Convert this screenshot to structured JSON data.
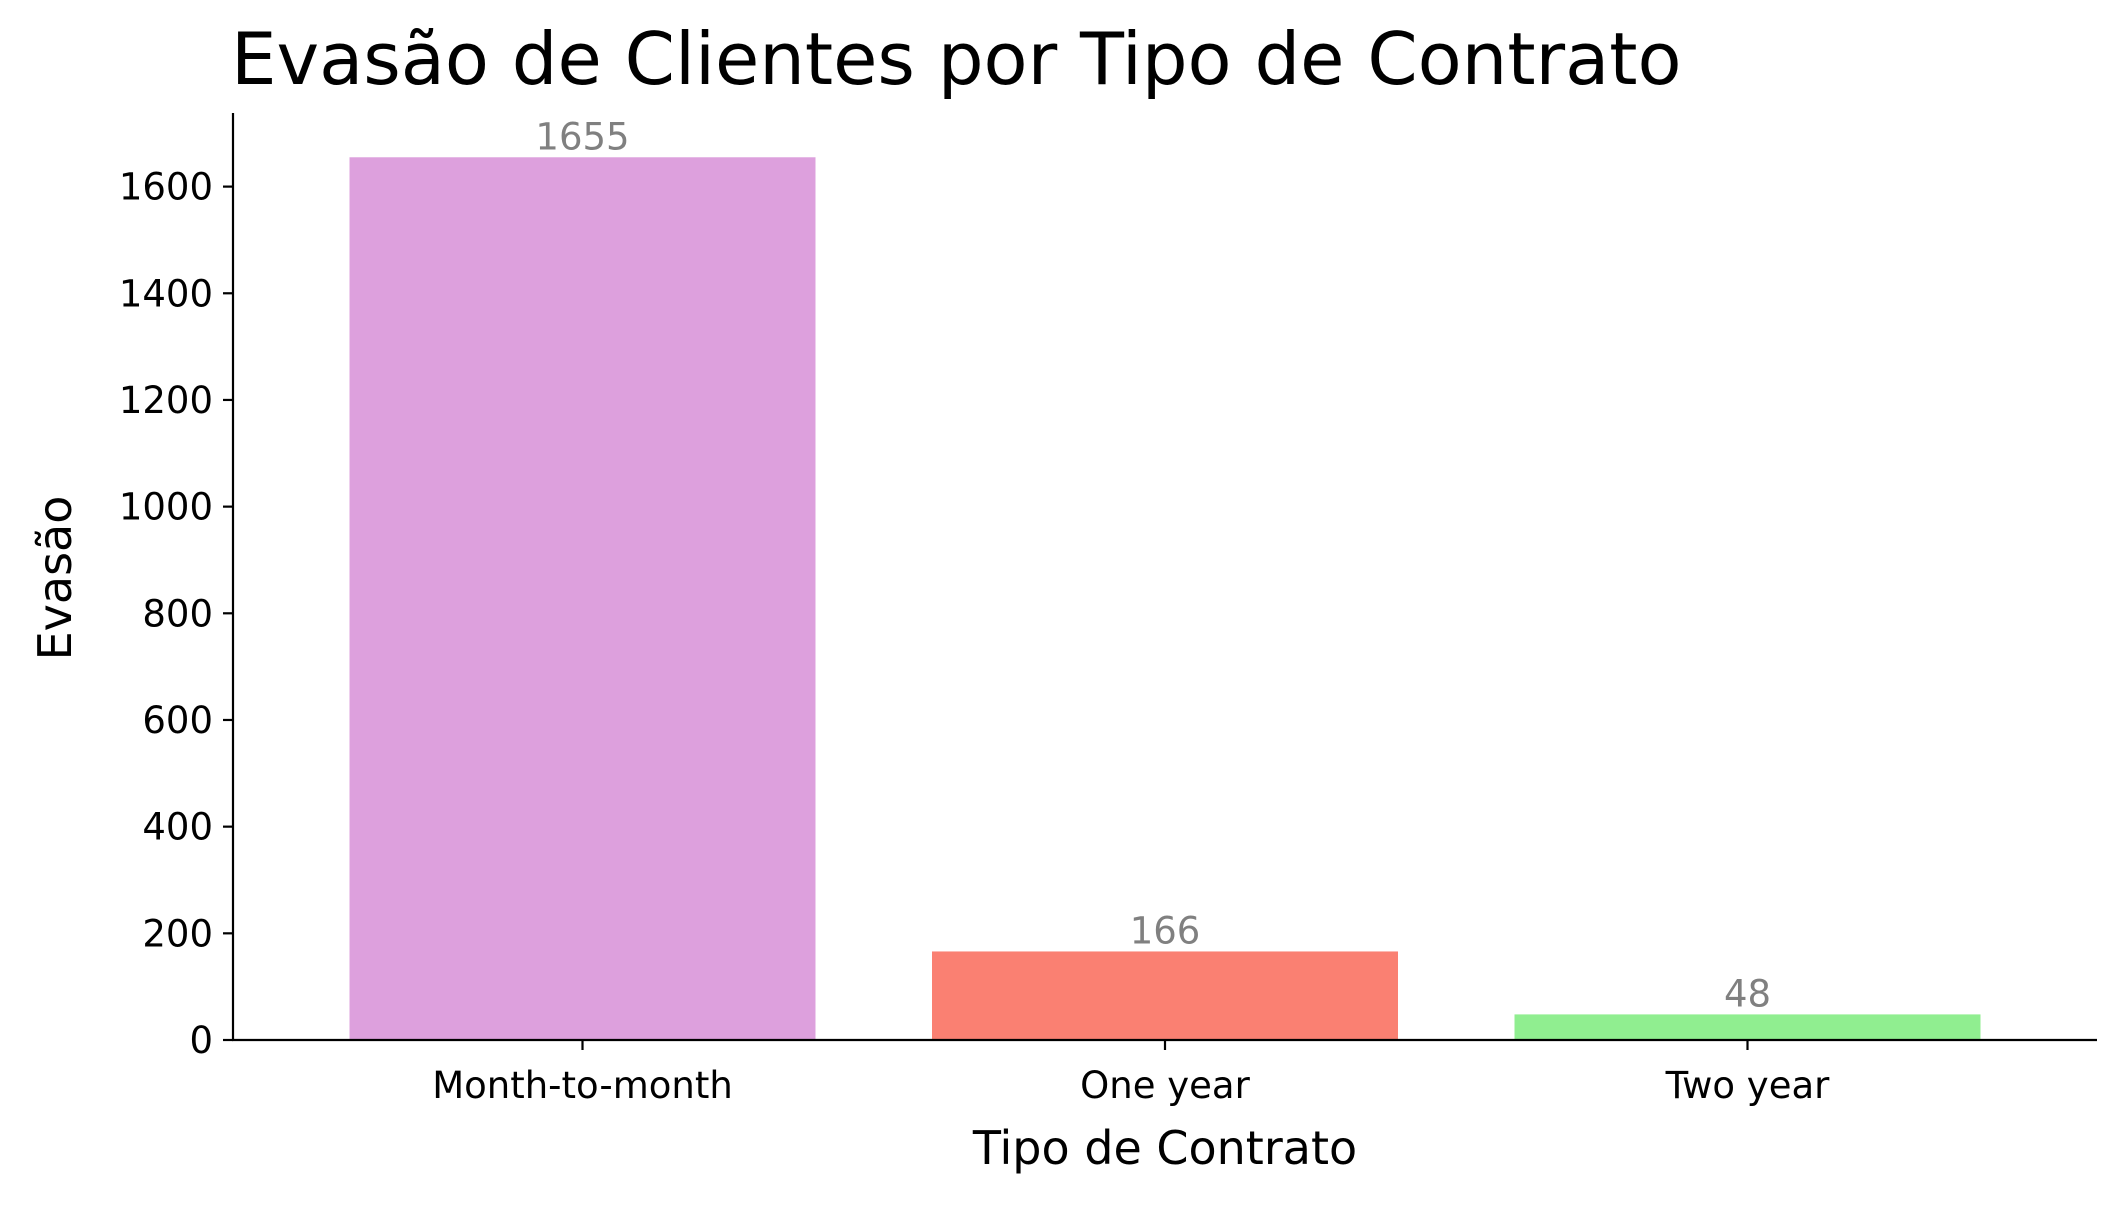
{
  "chart_data": {
    "type": "bar",
    "title": "Evasão de Clientes por Tipo de Contrato",
    "xlabel": "Tipo de Contrato",
    "ylabel": "Evasão",
    "categories": [
      "Month-to-month",
      "One year",
      "Two year"
    ],
    "values": [
      1655,
      166,
      48
    ],
    "value_labels": [
      "1655",
      "166",
      "48"
    ],
    "colors": [
      "#dda0dd",
      "#fa8072",
      "#90ee90"
    ],
    "label_color": "#808080",
    "ylim": [
      0,
      1738
    ],
    "yticks": [
      0,
      200,
      400,
      600,
      800,
      1000,
      1200,
      1400,
      1600
    ],
    "ytick_labels": [
      "0",
      "200",
      "400",
      "600",
      "800",
      "1000",
      "1200",
      "1400",
      "1600"
    ],
    "grid": false,
    "legend": "none",
    "spines": "left-bottom"
  }
}
